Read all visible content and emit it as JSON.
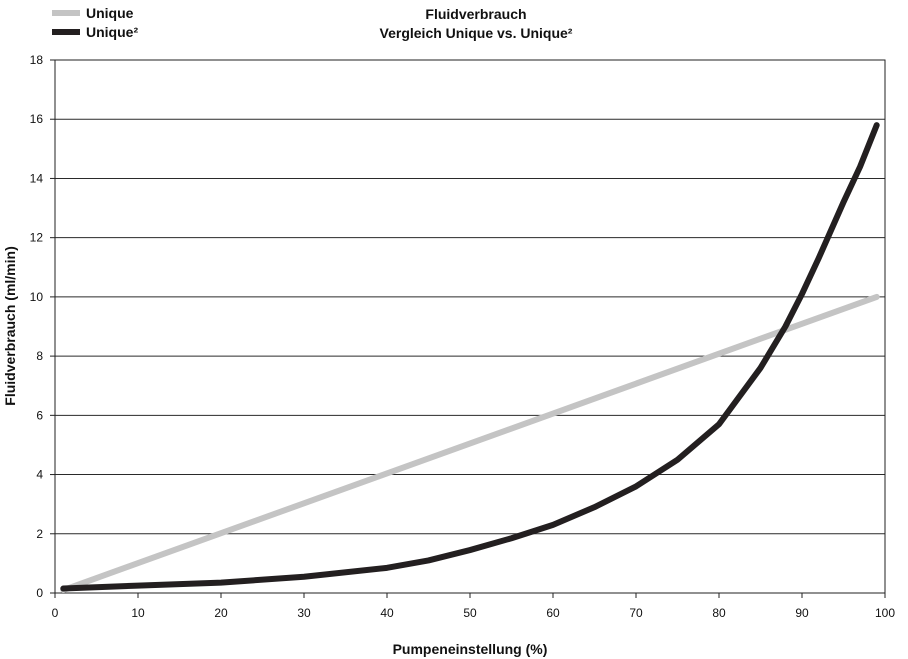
{
  "chart_data": {
    "type": "line",
    "title": "Fluidverbrauch",
    "subtitle": "Vergleich Unique vs. Unique²",
    "xlabel": "Pumpeneinstellung (%)",
    "ylabel": "Fluidverbrauch (ml/min)",
    "xlim": [
      0,
      100
    ],
    "ylim": [
      0,
      18
    ],
    "x_ticks": [
      0,
      10,
      20,
      30,
      40,
      50,
      60,
      70,
      80,
      90,
      100
    ],
    "y_ticks": [
      0,
      2,
      4,
      6,
      8,
      10,
      12,
      14,
      16,
      18
    ],
    "grid": "horizontal",
    "legend_position": "top-left",
    "series": [
      {
        "name": "Unique",
        "color": "#c4c4c4",
        "x": [
          1,
          99
        ],
        "y": [
          0.1,
          10.0
        ]
      },
      {
        "name": "Unique²",
        "color": "#231f20",
        "x": [
          1,
          10,
          20,
          30,
          40,
          45,
          50,
          55,
          60,
          65,
          70,
          75,
          80,
          85,
          88,
          90,
          92,
          95,
          97,
          99
        ],
        "y": [
          0.15,
          0.25,
          0.35,
          0.55,
          0.85,
          1.1,
          1.45,
          1.85,
          2.3,
          2.9,
          3.6,
          4.5,
          5.7,
          7.6,
          9.0,
          10.1,
          11.3,
          13.2,
          14.4,
          15.8
        ]
      }
    ]
  }
}
